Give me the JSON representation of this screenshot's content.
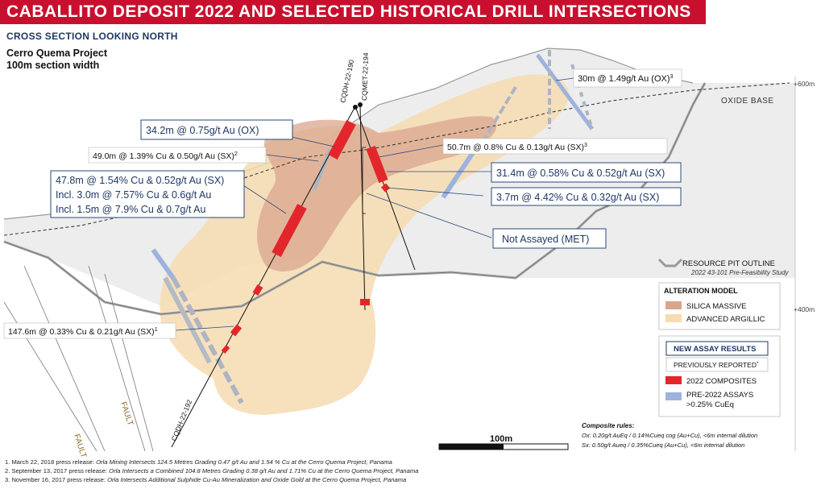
{
  "header": {
    "title": "CABALLITO DEPOSIT 2022 AND SELECTED HISTORICAL DRILL INTERSECTIONS",
    "subtitle": "CROSS SECTION LOOKING NORTH",
    "project_name": "Cerro Quema Project",
    "section_width": "100m section width"
  },
  "drillholes": {
    "hole1": "CQDH-22-190",
    "hole2": "CQMET-22-194",
    "hole3": "CQDH-22-192"
  },
  "intersections": {
    "i1": "30m @ 1.49g/t Au (OX)",
    "i1_sup": "3",
    "i2": "34.2m @ 0.75g/t Au (OX)",
    "i3": "49.0m @ 1.39% Cu & 0.50g/t Au (SX)",
    "i3_sup": "2",
    "i4": "50.7m @ 0.8% Cu & 0.13g/t Au (SX)",
    "i4_sup": "3",
    "i5_l1": "47.8m @ 1.54% Cu & 0.52g/t Au (SX)",
    "i5_l2": "Incl. 3.0m @ 7.57% Cu & 0.6g/t Au",
    "i5_l3": "Incl. 1.5m @ 7.9% Cu & 0.7g/t Au",
    "i6": "31.4m @ 0.58% Cu & 0.52g/t Au (SX)",
    "i7": "3.7m @ 4.42% Cu & 0.32g/t Au (SX)",
    "i8": "Not Assayed (MET)",
    "i9": "147.6m @ 0.33% Cu & 0.21g/t Au (SX)",
    "i9_sup": "1"
  },
  "map_labels": {
    "oxide_base": "OXIDE BASE",
    "elev_600": "+600m",
    "elev_400": "+400m",
    "fault1": "FAULT",
    "fault2": "FAULT"
  },
  "legend": {
    "pit_outline": "RESOURCE PIT OUTLINE",
    "pit_outline_sub": "2022 43-101 Pre-Feasibility Study",
    "alteration_title": "ALTERATION MODEL",
    "silica": "SILICA MASSIVE",
    "argillic": "ADVANCED ARGILLIC",
    "new_assay": "NEW ASSAY RESULTS",
    "previously": "PREVIOUSLY REPORTED",
    "previously_sup": "*",
    "composites": "2022 COMPOSITES",
    "pre2022_l1": "PRE-2022 ASSAYS",
    "pre2022_l2": ">0.25% CuEq",
    "rules_title": "Composite rules:",
    "rule_ox": "Ox: 0.20g/t AuEq / 0.14%Cueq cog (Au+Cu), <6m internal dilution",
    "rule_sx": "Sx: 0.50g/t Aueq / 0.35%Cueq (Au+Cu), <6m internal dilution",
    "scale": "100m"
  },
  "footnotes": {
    "n1_prefix": "1. March 22, 2018 press release: ",
    "n1_title": "Orla Mining Intersects 124.5 Metres Grading 0.47 g/t Au and 1.54 % Cu at the Cerro Quema Project, Panama",
    "n2_prefix": "2. September 13, 2017 press release: ",
    "n2_title": "Orla Intersects a Combined 104.8 Metres Grading 0.38 g/t Au and 1.71% Cu at the Cerro Quema Project, Panama",
    "n3_prefix": "3. November 16, 2017 press release: ",
    "n3_title": "Orla Intersects Additional Sulphide Cu-Au Mineralization and Oxide Gold at the Cerro Quema Project, Panama"
  },
  "colors": {
    "banner": "#c8102e",
    "navy": "#1f3864",
    "silica": "#d9a58d",
    "argillic": "#f6dcb0",
    "composite": "#e3262c",
    "pre2022": "#9db3dd"
  }
}
